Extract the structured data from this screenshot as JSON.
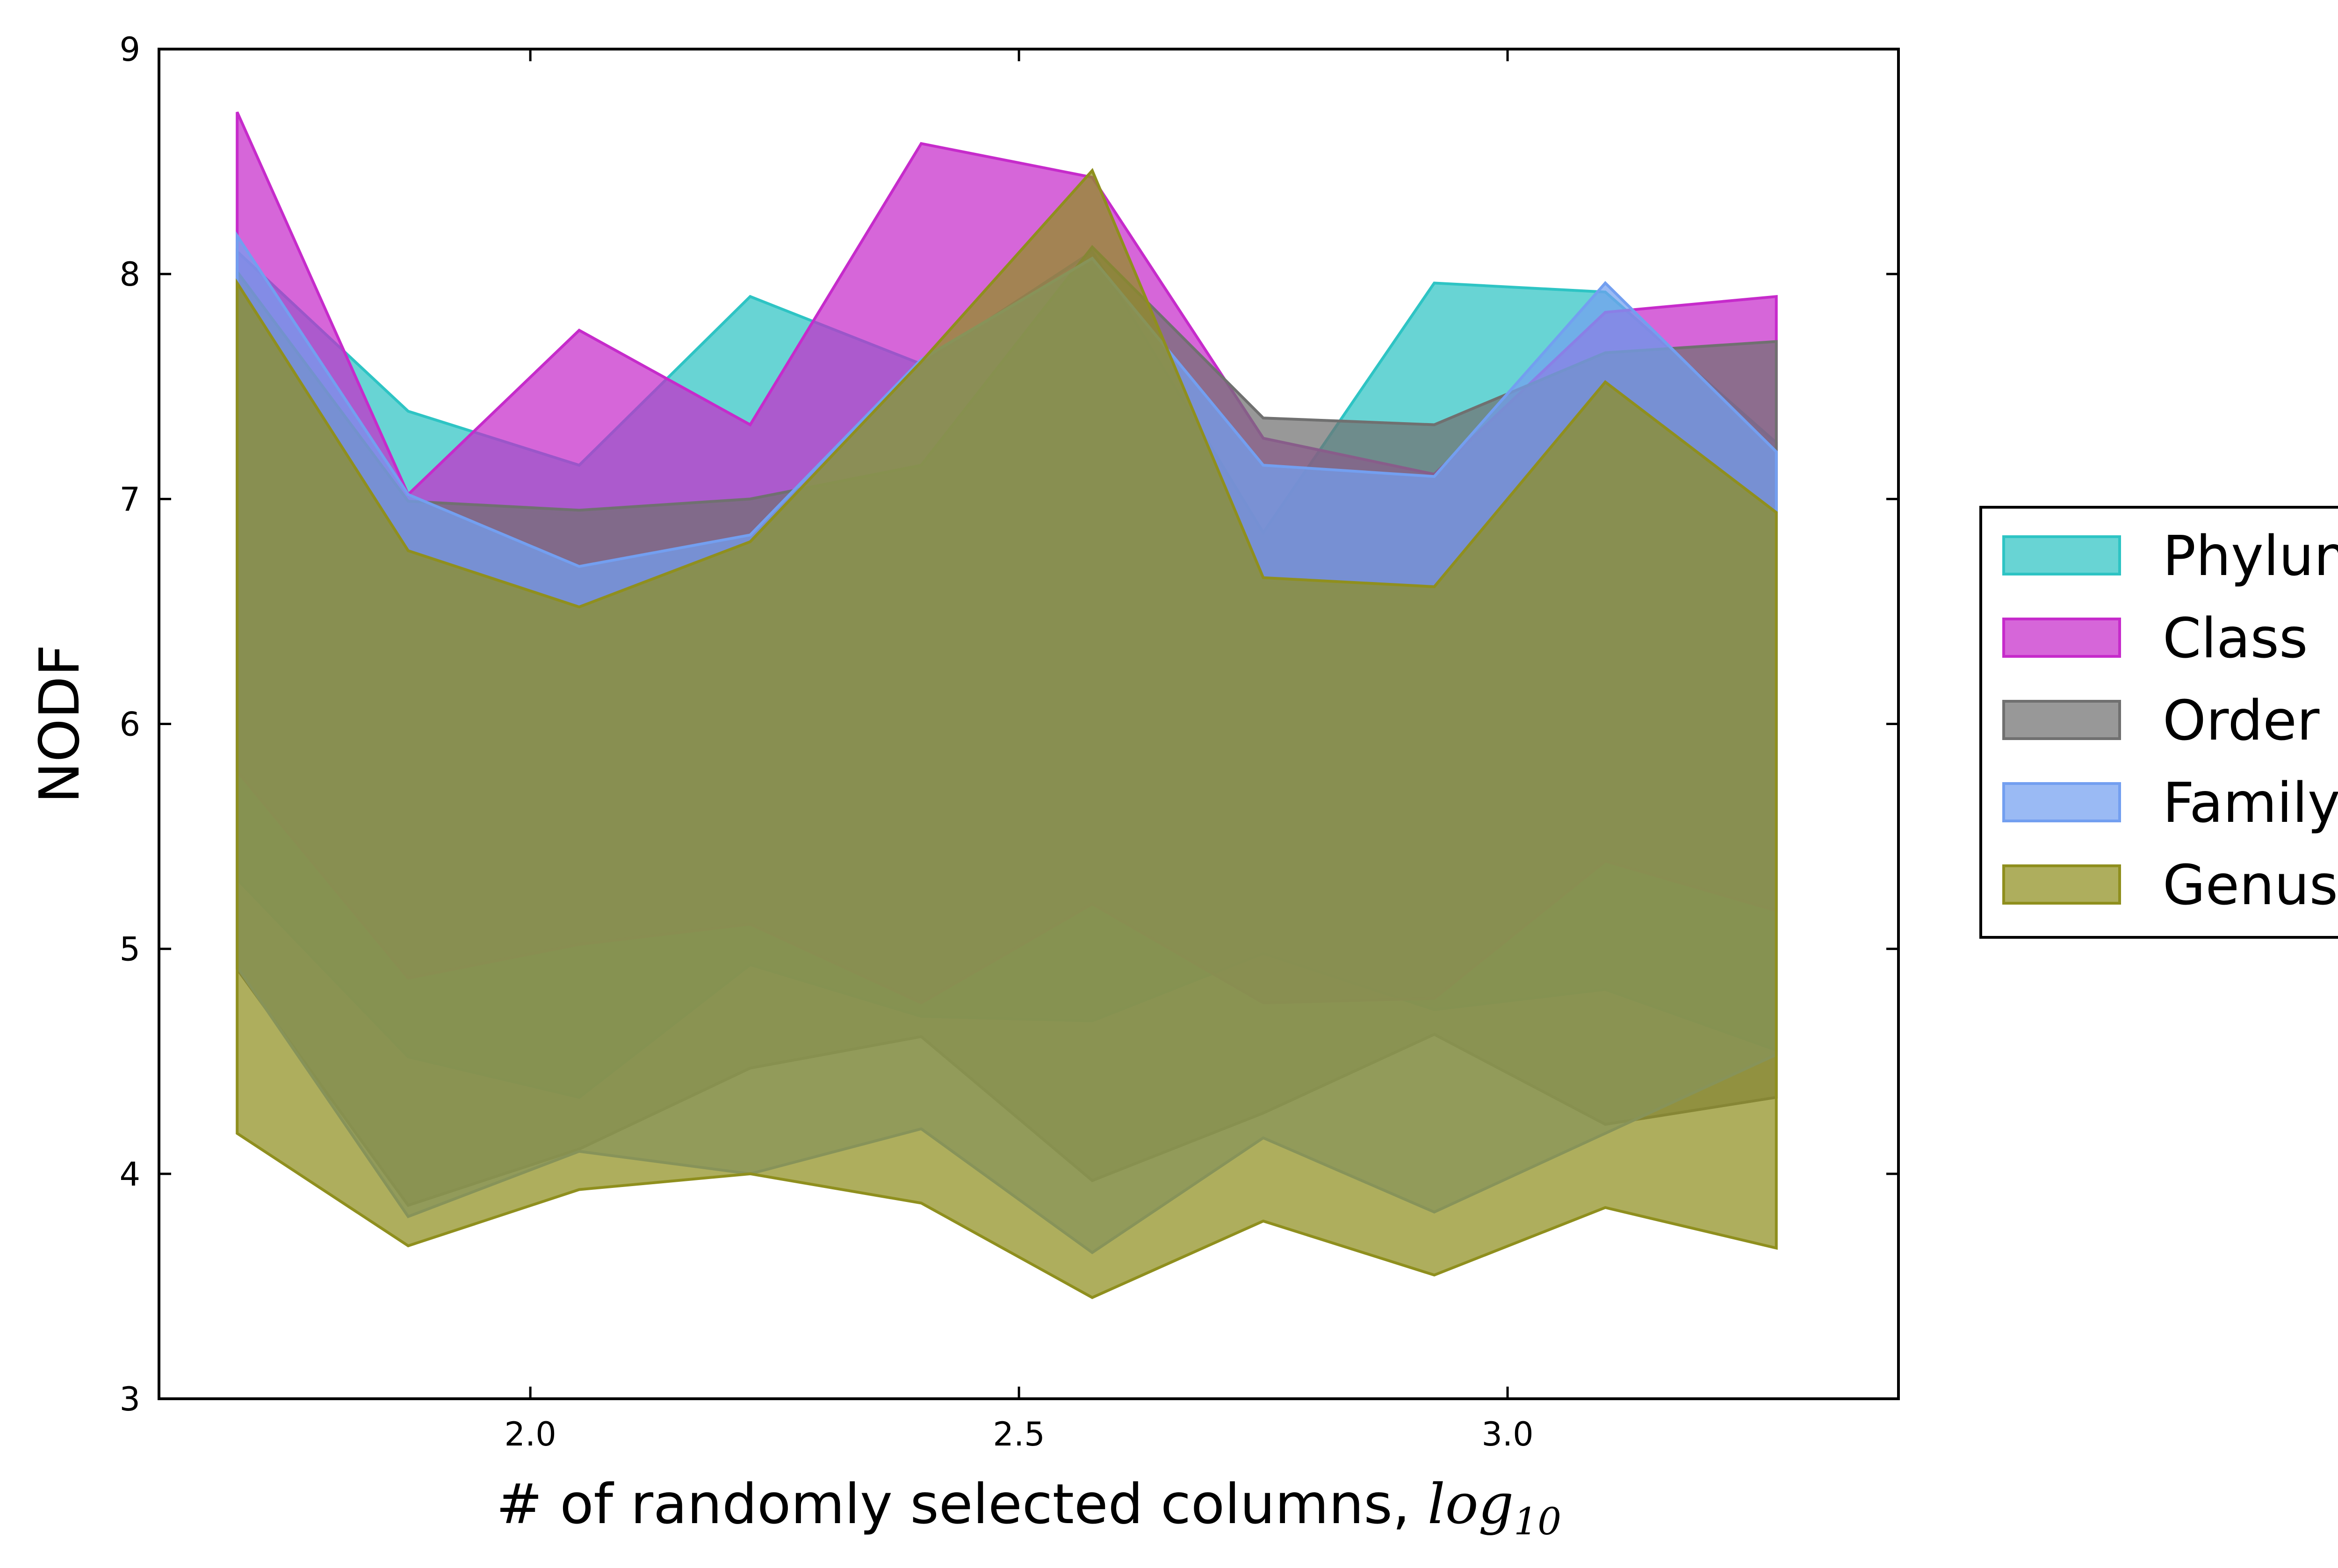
{
  "chart_data": {
    "type": "area",
    "title": "",
    "xlabel": "# of randomly selected columns, ",
    "xlabel_math": "log",
    "xlabel_math_sub": "10",
    "ylabel": "NODF",
    "xlim": [
      1.62,
      3.4
    ],
    "ylim": [
      3,
      9
    ],
    "x_ticks": [
      2.0,
      2.5,
      3.0
    ],
    "x_tick_labels": [
      "2.0",
      "2.5",
      "3.0"
    ],
    "y_ticks": [
      3,
      4,
      5,
      6,
      7,
      8,
      9
    ],
    "y_tick_labels": [
      "3",
      "4",
      "5",
      "6",
      "7",
      "8",
      "9"
    ],
    "grid": false,
    "legend_position": "outside-right",
    "x": [
      1.7,
      1.875,
      2.05,
      2.225,
      2.4,
      2.575,
      2.75,
      2.925,
      3.1,
      3.275
    ],
    "series": [
      {
        "name": "Phylum",
        "color": "#2ec4c4",
        "upper": [
          8.1,
          7.39,
          7.15,
          7.9,
          7.6,
          8.1,
          6.85,
          7.96,
          7.92,
          7.25
        ],
        "lower": [
          5.31,
          4.52,
          4.34,
          4.93,
          4.7,
          4.68,
          4.98,
          4.73,
          4.82,
          4.55
        ]
      },
      {
        "name": "Class",
        "color": "#c62bcb",
        "upper": [
          8.72,
          7.02,
          7.75,
          7.33,
          8.58,
          8.43,
          7.27,
          7.11,
          7.83,
          7.9
        ],
        "lower": [
          5.79,
          4.87,
          5.02,
          5.11,
          4.76,
          5.2,
          4.76,
          4.78,
          5.39,
          5.17
        ]
      },
      {
        "name": "Order",
        "color": "#707070",
        "upper": [
          8.01,
          6.99,
          6.95,
          7.0,
          7.15,
          8.12,
          7.36,
          7.33,
          7.65,
          7.7
        ],
        "lower": [
          4.91,
          3.86,
          4.11,
          4.47,
          4.61,
          3.97,
          4.27,
          4.62,
          4.22,
          4.34
        ]
      },
      {
        "name": "Family",
        "color": "#739ff0",
        "upper": [
          8.17,
          7.02,
          6.7,
          6.84,
          7.62,
          8.07,
          7.15,
          7.1,
          7.96,
          7.21
        ],
        "lower": [
          4.92,
          3.81,
          4.1,
          4.0,
          4.2,
          3.65,
          4.16,
          3.83,
          4.18,
          4.53
        ]
      },
      {
        "name": "Genus",
        "color": "#8f8f1e",
        "upper": [
          7.96,
          6.77,
          6.52,
          6.81,
          7.61,
          8.46,
          6.65,
          6.61,
          7.52,
          6.94
        ],
        "lower": [
          4.18,
          3.68,
          3.93,
          4.0,
          3.87,
          3.45,
          3.79,
          3.55,
          3.85,
          3.67
        ]
      }
    ]
  }
}
